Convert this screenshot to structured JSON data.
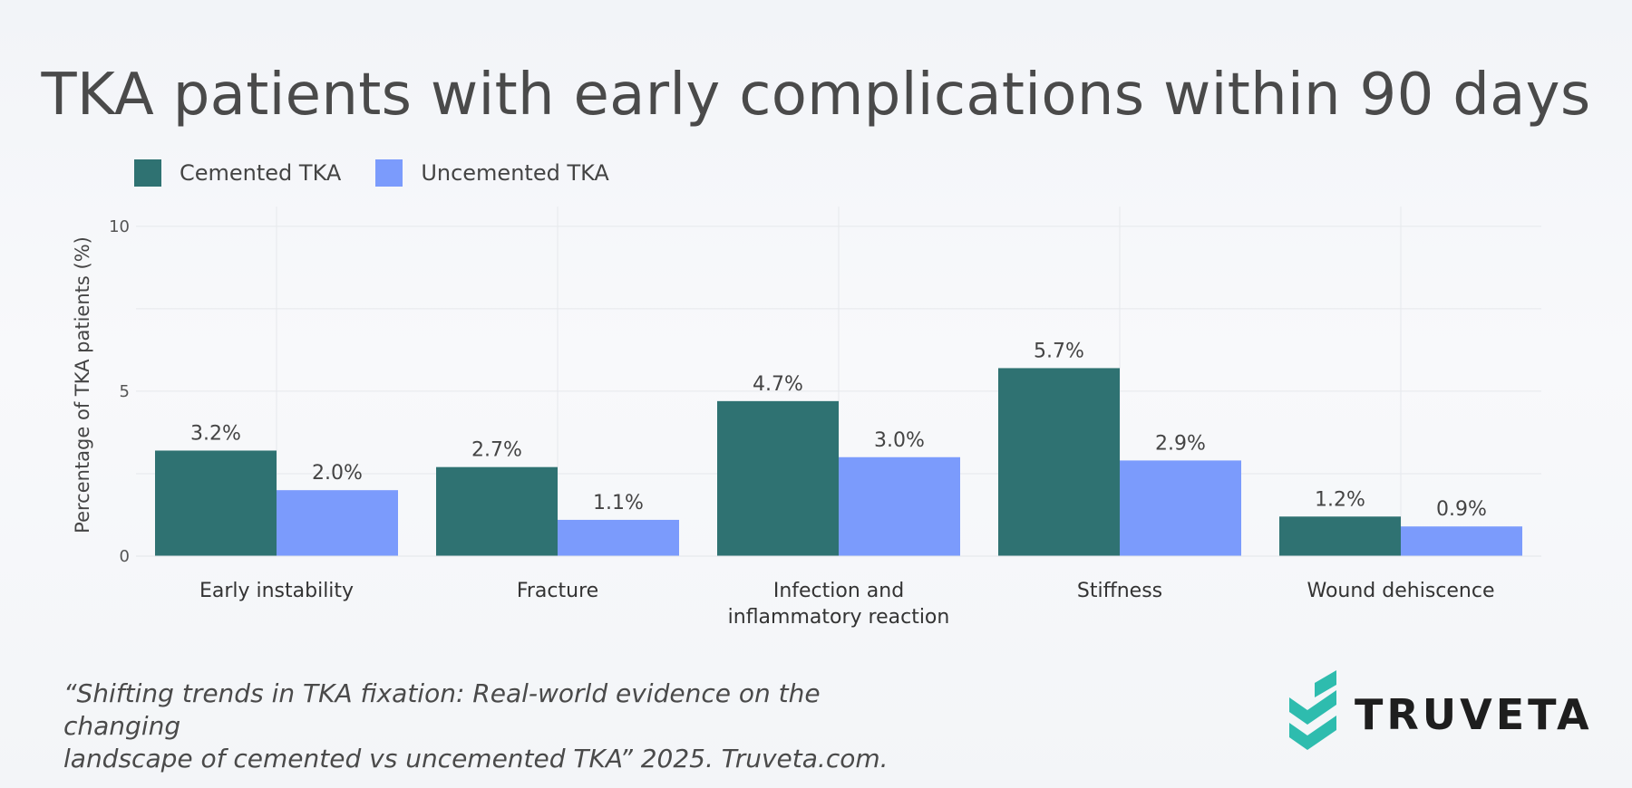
{
  "title": "TKA patients with early complications within 90 days",
  "legend": {
    "items": [
      {
        "label": "Cemented TKA",
        "color": "#2f7272"
      },
      {
        "label": "Uncemented TKA",
        "color": "#7b9bfc"
      }
    ]
  },
  "citation": {
    "line1": "“Shifting trends in TKA fixation: Real-world evidence on the changing",
    "line2": "landscape of cemented vs uncemented TKA” 2025. Truveta.com."
  },
  "logo": {
    "text": "TRUVETA",
    "icon": "truveta-chevron-icon",
    "color": "#2ebcae"
  },
  "chart_data": {
    "type": "bar",
    "ylabel": "Percentage of TKA patients (%)",
    "ylim": [
      0,
      10
    ],
    "yticks": [
      0,
      5,
      10
    ],
    "grid": true,
    "legend_position": "top-left",
    "categories": [
      [
        "Early instability"
      ],
      [
        "Fracture"
      ],
      [
        "Infection and",
        "inflammatory reaction"
      ],
      [
        "Stiffness"
      ],
      [
        "Wound dehiscence"
      ]
    ],
    "series": [
      {
        "name": "Cemented TKA",
        "color": "#2f7272",
        "values": [
          3.2,
          2.7,
          4.7,
          5.7,
          1.2
        ],
        "labels": [
          "3.2%",
          "2.7%",
          "4.7%",
          "5.7%",
          "1.2%"
        ]
      },
      {
        "name": "Uncemented TKA",
        "color": "#7b9bfc",
        "values": [
          2.0,
          1.1,
          3.0,
          2.9,
          0.9
        ],
        "labels": [
          "2.0%",
          "1.1%",
          "3.0%",
          "2.9%",
          "0.9%"
        ]
      }
    ]
  }
}
